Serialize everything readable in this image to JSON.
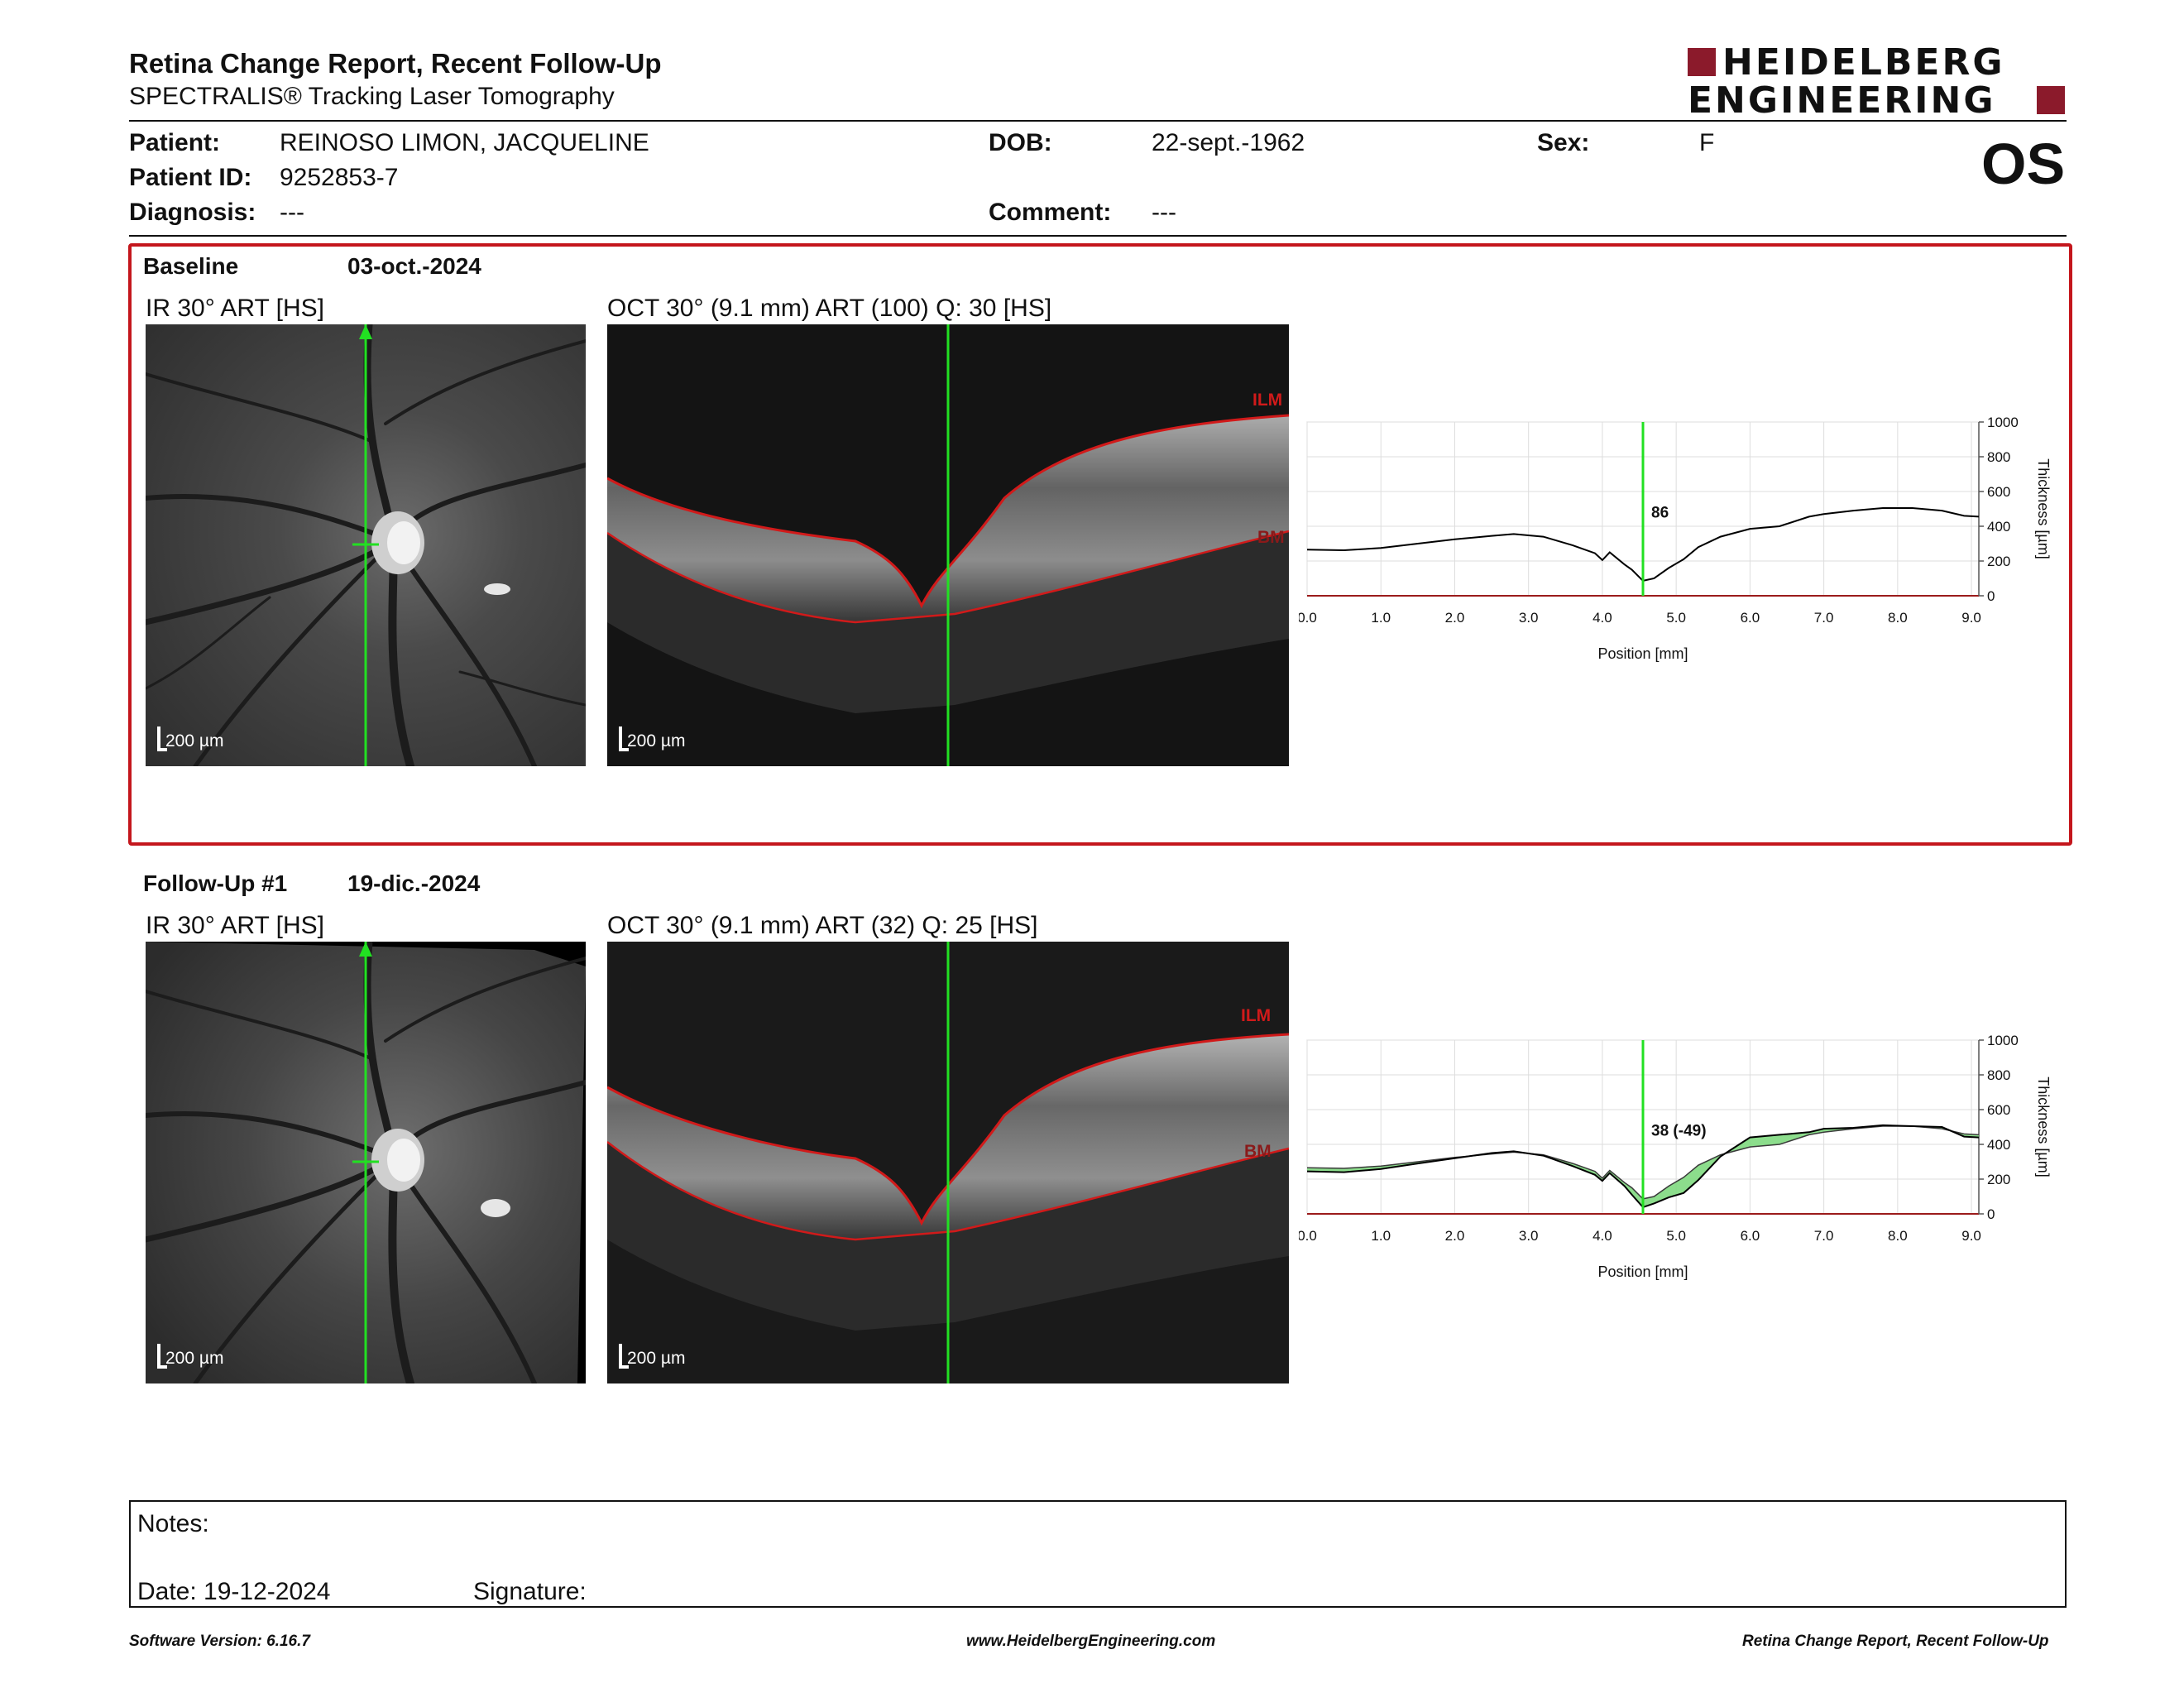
{
  "header": {
    "title": "Retina Change Report, Recent Follow-Up",
    "subtitle": "SPECTRALIS® Tracking Laser Tomography",
    "logo_line1": "HEIDELBERG",
    "logo_line2": "ENGINEERING",
    "eye": "OS"
  },
  "patient": {
    "patient_label": "Patient:",
    "patient_value": "REINOSO LIMON, JACQUELINE",
    "dob_label": "DOB:",
    "dob_value": "22-sept.-1962",
    "sex_label": "Sex:",
    "sex_value": "F",
    "id_label": "Patient ID:",
    "id_value": "9252853-7",
    "diagnosis_label": "Diagnosis:",
    "diagnosis_value": "---",
    "comment_label": "Comment:",
    "comment_value": "---"
  },
  "baseline": {
    "label": "Baseline",
    "date": "03-oct.-2024",
    "ir_title": "IR 30° ART [HS]",
    "oct_title": "OCT 30° (9.1 mm) ART (100) Q: 30 [HS]",
    "scale": "200 µm",
    "ilm": "ILM",
    "bm": "BM"
  },
  "followup": {
    "label": "Follow-Up #1",
    "date": "19-dic.-2024",
    "ir_title": "IR 30° ART [HS]",
    "oct_title": "OCT 30° (9.1 mm) ART (32) Q: 25 [HS]",
    "scale": "200 µm",
    "ilm": "ILM",
    "bm": "BM"
  },
  "chart_data": [
    {
      "type": "line",
      "xlabel": "Position [mm]",
      "ylabel": "Thickness [µm]",
      "xlim": [
        0,
        9.1
      ],
      "ylim": [
        0,
        1000
      ],
      "xticks": [
        "0.0",
        "1.0",
        "2.0",
        "3.0",
        "4.0",
        "5.0",
        "6.0",
        "7.0",
        "8.0",
        "9.0"
      ],
      "yticks": [
        "0",
        "200",
        "400",
        "600",
        "800",
        "1000"
      ],
      "grid": true,
      "marker_x": 4.55,
      "marker_label": "86",
      "series": [
        {
          "x": [
            0.0,
            0.5,
            1.0,
            1.5,
            2.0,
            2.5,
            2.8,
            3.2,
            3.6,
            3.9,
            4.0,
            4.1,
            4.3,
            4.4,
            4.55,
            4.7,
            4.9,
            5.1,
            5.3,
            5.6,
            6.0,
            6.4,
            6.8,
            7.0,
            7.4,
            7.8,
            8.2,
            8.6,
            8.9,
            9.1
          ],
          "y": [
            265,
            262,
            275,
            300,
            325,
            345,
            355,
            340,
            290,
            245,
            205,
            250,
            180,
            150,
            86,
            100,
            160,
            210,
            280,
            340,
            385,
            400,
            455,
            470,
            490,
            505,
            505,
            490,
            460,
            455
          ]
        }
      ]
    },
    {
      "type": "area",
      "xlabel": "Position [mm]",
      "ylabel": "Thickness [µm]",
      "xlim": [
        0,
        9.1
      ],
      "ylim": [
        0,
        1000
      ],
      "xticks": [
        "0.0",
        "1.0",
        "2.0",
        "3.0",
        "4.0",
        "5.0",
        "6.0",
        "7.0",
        "8.0",
        "9.0"
      ],
      "yticks": [
        "0",
        "200",
        "400",
        "600",
        "800",
        "1000"
      ],
      "grid": true,
      "marker_x": 4.55,
      "marker_label": "38 (-49)",
      "series": [
        {
          "x": [
            0.0,
            0.5,
            1.0,
            1.5,
            2.0,
            2.5,
            2.8,
            3.2,
            3.6,
            3.9,
            4.0,
            4.1,
            4.3,
            4.4,
            4.55,
            4.7,
            4.9,
            5.1,
            5.3,
            5.6,
            6.0,
            6.4,
            6.8,
            7.0,
            7.4,
            7.8,
            8.2,
            8.6,
            8.9,
            9.1
          ],
          "y": [
            265,
            262,
            275,
            300,
            325,
            345,
            355,
            340,
            290,
            245,
            205,
            250,
            180,
            150,
            86,
            100,
            160,
            210,
            280,
            340,
            385,
            400,
            455,
            470,
            490,
            505,
            505,
            490,
            460,
            455
          ]
        },
        {
          "x": [
            0.0,
            0.5,
            1.0,
            1.5,
            2.0,
            2.5,
            2.8,
            3.2,
            3.6,
            3.9,
            4.0,
            4.1,
            4.3,
            4.4,
            4.55,
            4.7,
            4.9,
            5.1,
            5.3,
            5.6,
            6.0,
            6.4,
            6.8,
            7.0,
            7.4,
            7.8,
            8.2,
            8.6,
            8.9,
            9.1
          ],
          "y": [
            245,
            240,
            258,
            290,
            320,
            350,
            360,
            335,
            275,
            225,
            190,
            235,
            160,
            110,
            38,
            60,
            95,
            120,
            195,
            330,
            440,
            455,
            470,
            490,
            495,
            510,
            505,
            500,
            445,
            440
          ]
        }
      ]
    }
  ],
  "notes": {
    "notes_label": "Notes:",
    "date_label": "Date: 19-12-2024",
    "signature_label": "Signature:"
  },
  "footer": {
    "left": "Software Version: 6.16.7",
    "center": "www.HeidelbergEngineering.com",
    "right": "Retina Change Report, Recent Follow-Up"
  },
  "colors": {
    "accent_red": "#c4161c",
    "logo_red": "#8b1a2b",
    "scan_line_green": "#22e022",
    "layer_red": "#d11a1a",
    "change_fill_green": "#7fd97f"
  }
}
